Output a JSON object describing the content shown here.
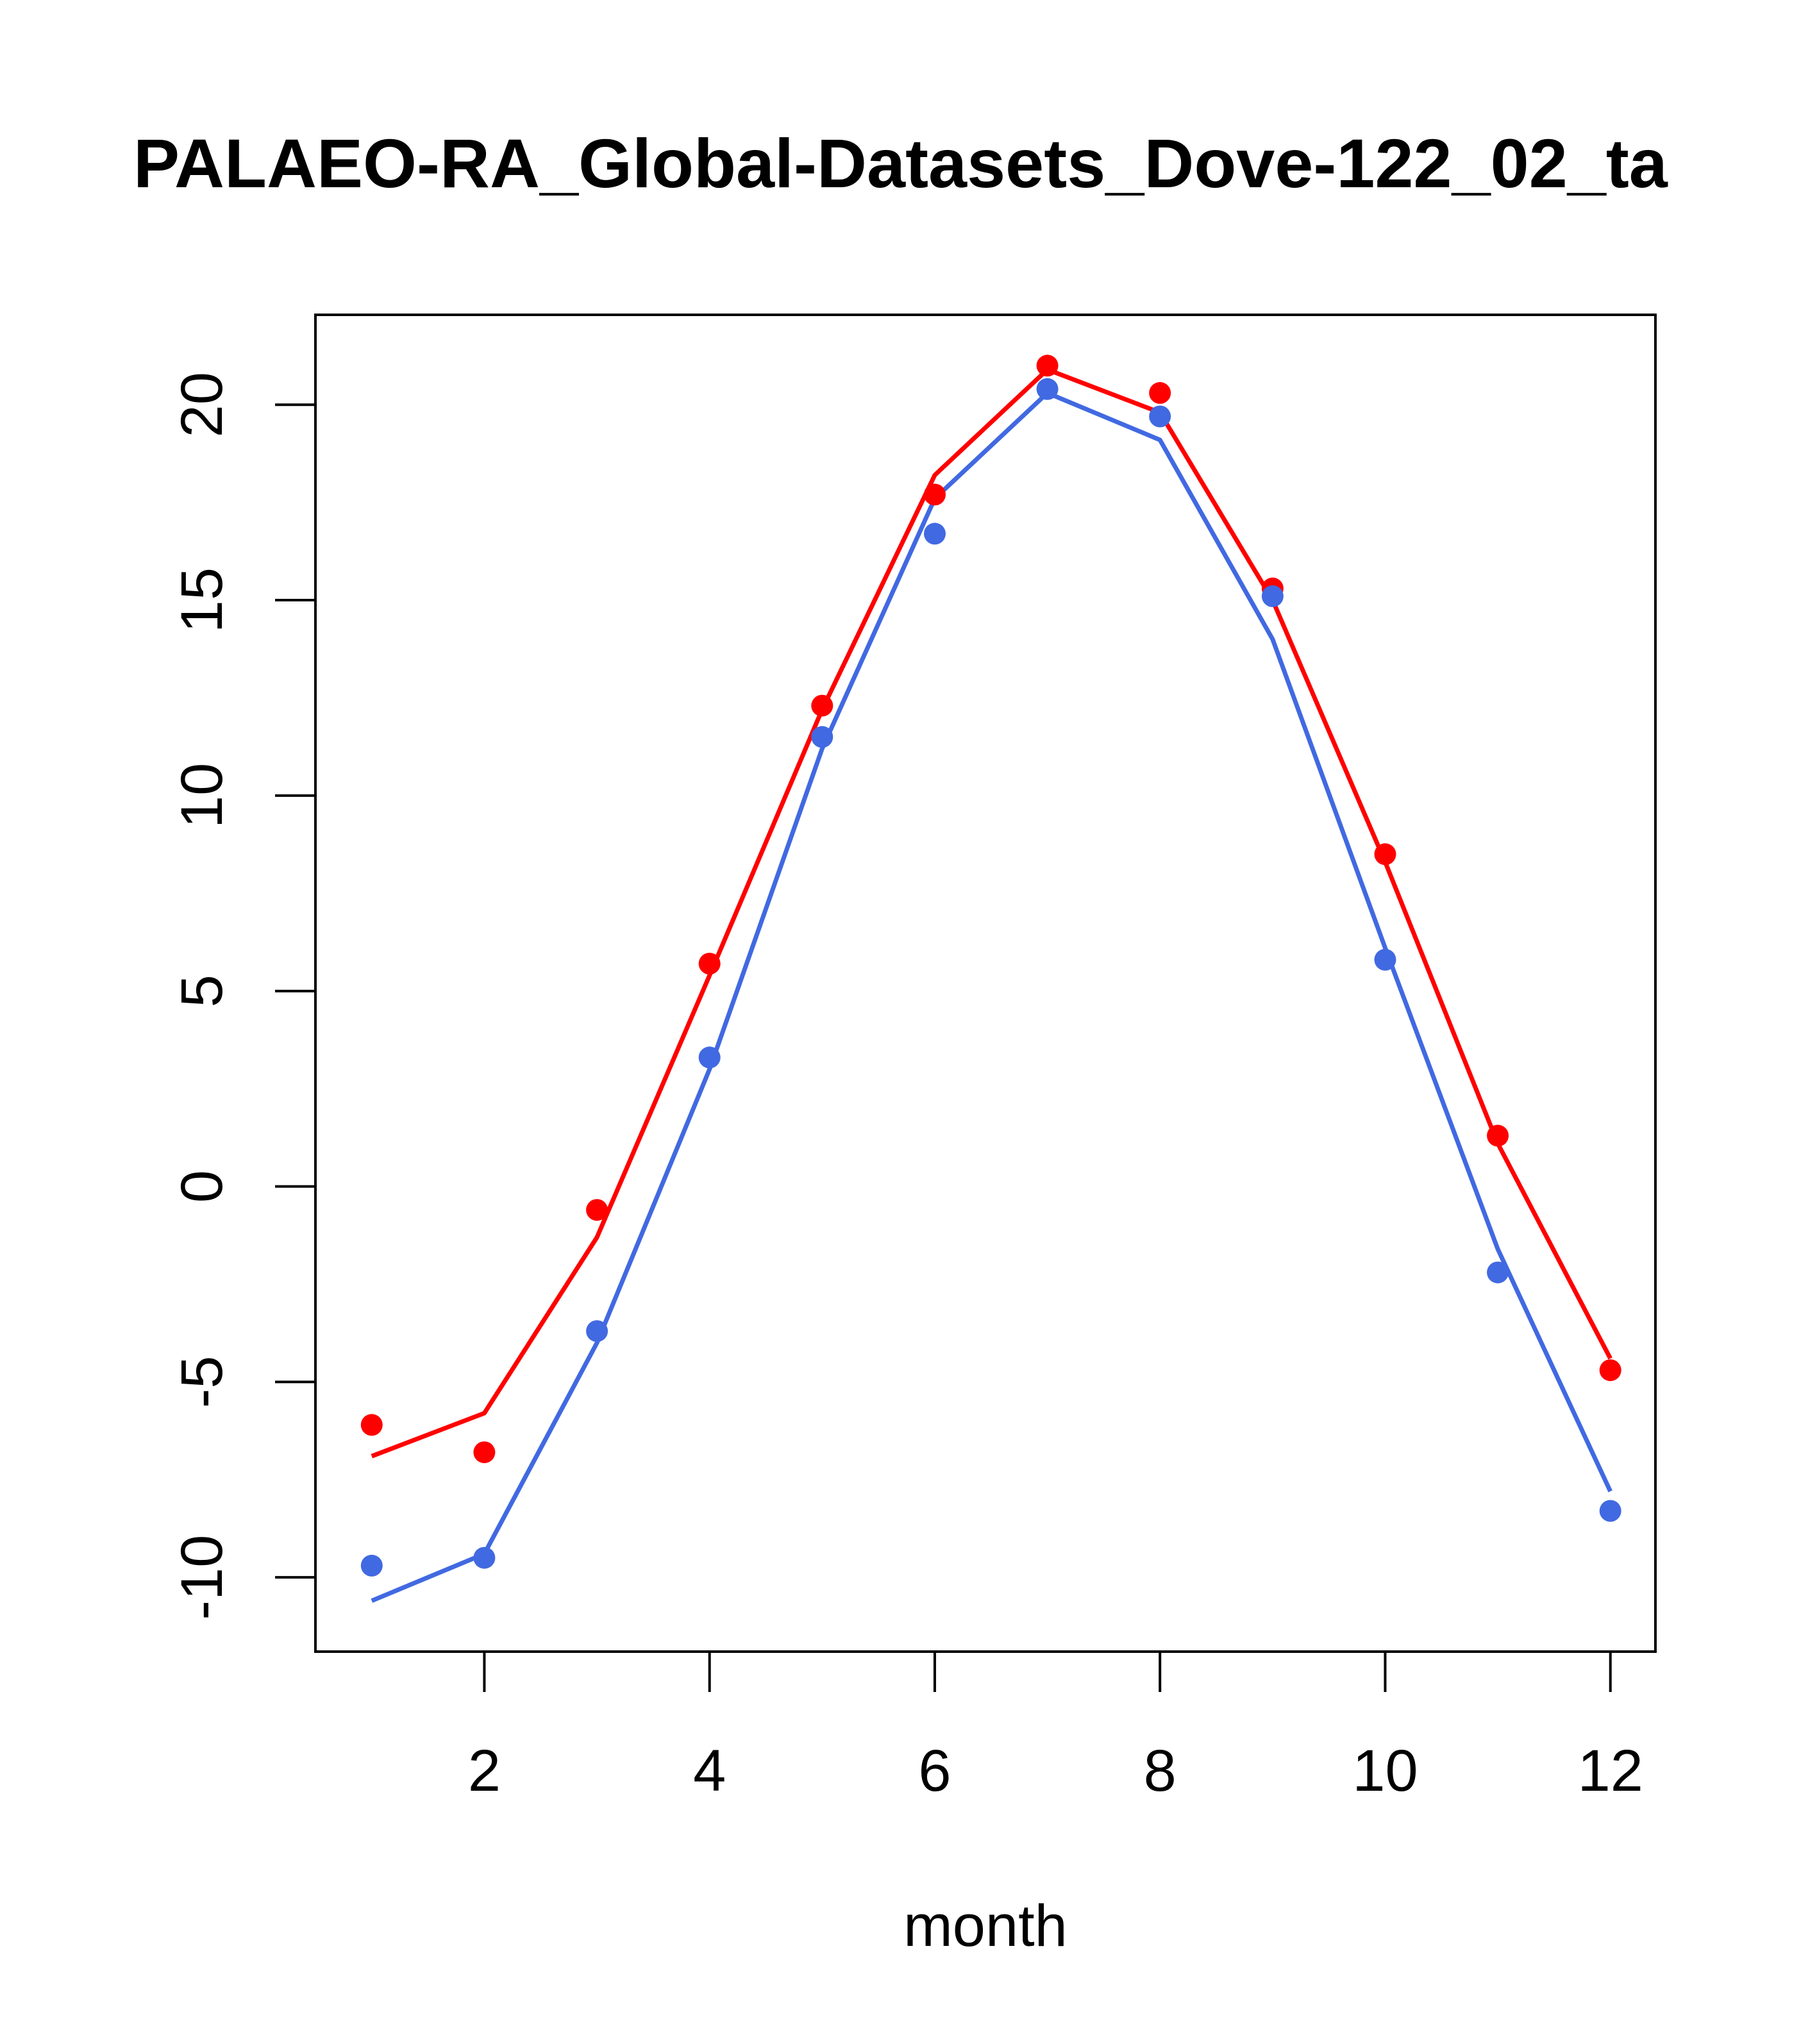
{
  "chart_data": {
    "type": "line",
    "title": "PALAEO-RA_Global-Datasets_Dove-122_02_ta",
    "xlabel": "month",
    "ylabel": "",
    "xlim": [
      0.5,
      12.4
    ],
    "ylim": [
      -11.9,
      22.3
    ],
    "x_ticks": [
      2,
      4,
      6,
      8,
      10,
      12
    ],
    "y_ticks": [
      -10,
      -5,
      0,
      5,
      10,
      15,
      20
    ],
    "x_tick_labels": [
      "2",
      "4",
      "6",
      "8",
      "10",
      "12"
    ],
    "y_tick_labels": [
      "-10",
      "-5",
      "0",
      "5",
      "10",
      "15",
      "20"
    ],
    "grid": false,
    "legend": "none",
    "x": [
      1,
      2,
      3,
      4,
      5,
      6,
      7,
      8,
      9,
      10,
      11,
      12
    ],
    "series": [
      {
        "color": "#FF0000",
        "points": [
          -6.1,
          -6.8,
          -0.6,
          5.7,
          12.3,
          17.7,
          21.0,
          20.3,
          15.3,
          8.5,
          1.3,
          -4.7
        ],
        "line": [
          -6.9,
          -5.8,
          -1.3,
          5.4,
          12.2,
          18.2,
          20.9,
          19.8,
          15.0,
          8.3,
          1.1,
          -4.4
        ]
      },
      {
        "color": "#4169E1",
        "points": [
          -9.7,
          -9.5,
          -3.7,
          3.3,
          11.5,
          16.7,
          20.4,
          19.7,
          15.1,
          5.8,
          -2.2,
          -8.3
        ],
        "line": [
          -10.6,
          -9.4,
          -4.0,
          3.0,
          11.2,
          17.6,
          20.3,
          19.1,
          14.0,
          6.1,
          -1.6,
          -7.8
        ]
      }
    ]
  }
}
